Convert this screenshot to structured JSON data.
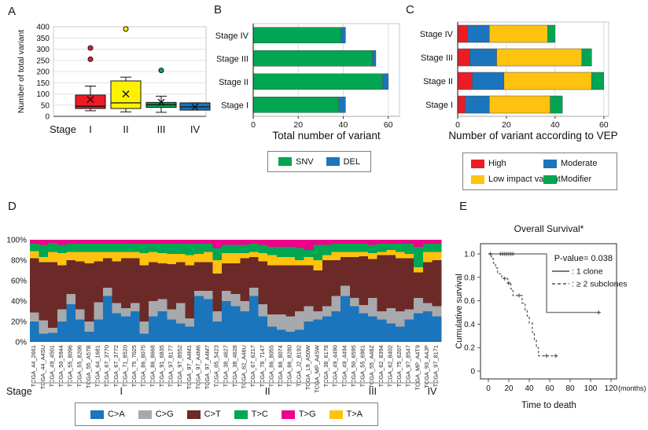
{
  "panels": {
    "a": "A",
    "b": "B",
    "c": "C",
    "d": "D",
    "e": "E"
  },
  "colors": {
    "red": "#EC1C24",
    "yellow": "#FFF200",
    "gold": "#FFC20E",
    "green": "#00A651",
    "blue": "#1B75BC",
    "gray": "#A7A9AC",
    "maroon": "#6B2A28",
    "magenta": "#EC008C"
  },
  "chart_data": [
    {
      "panel": "A",
      "type": "boxplot",
      "ylabel": "Number of total variant",
      "x_prefix": "Stage",
      "categories": [
        "I",
        "II",
        "III",
        "IV"
      ],
      "ylim": [
        0,
        400
      ],
      "yticks": [
        0,
        50,
        100,
        150,
        200,
        250,
        300,
        350,
        400
      ],
      "boxes": [
        {
          "category": "I",
          "color": "#EC1C24",
          "whisker_low": 25,
          "q1": 35,
          "median": 45,
          "q3": 95,
          "whisker_high": 135,
          "mean": 75,
          "outliers": [
            255,
            305
          ]
        },
        {
          "category": "II",
          "color": "#FFF200",
          "whisker_low": 20,
          "q1": 35,
          "median": 60,
          "q3": 158,
          "whisker_high": 175,
          "mean": 100,
          "outliers": [
            390
          ]
        },
        {
          "category": "III",
          "color": "#00A651",
          "whisker_low": 18,
          "q1": 40,
          "median": 52,
          "q3": 62,
          "whisker_high": 90,
          "mean": 63,
          "outliers": [
            205
          ]
        },
        {
          "category": "IV",
          "color": "#1B75BC",
          "whisker_low": 28,
          "q1": 28,
          "median": 42,
          "q3": 60,
          "whisker_high": 60,
          "mean": 42,
          "outliers": []
        }
      ]
    },
    {
      "panel": "B",
      "type": "bar",
      "orientation": "horizontal",
      "stacked": true,
      "xlabel": "Total number of variant",
      "categories": [
        "Stage IV",
        "Stage III",
        "Stage II",
        "Stage I"
      ],
      "series": [
        {
          "name": "SNV",
          "color": "#00A651",
          "values": [
            39,
            53,
            57.5,
            38
          ]
        },
        {
          "name": "DEL",
          "color": "#1B75BC",
          "values": [
            2,
            1.5,
            2.5,
            3
          ]
        }
      ],
      "xlim": [
        0,
        65
      ],
      "xticks": [
        0,
        20,
        40,
        60
      ],
      "legend": [
        {
          "name": "SNV",
          "color": "#00A651"
        },
        {
          "name": "DEL",
          "color": "#1B75BC"
        }
      ],
      "legend_position": "bottom"
    },
    {
      "panel": "C",
      "type": "bar",
      "orientation": "horizontal",
      "stacked": true,
      "xlabel": "Number of variant according to VEP",
      "categories": [
        "Stage IV",
        "Stage III",
        "Stage II",
        "Stage I"
      ],
      "series": [
        {
          "name": "High",
          "color": "#EC1C24",
          "values": [
            4,
            5,
            6,
            3
          ]
        },
        {
          "name": "Moderate",
          "color": "#1B75BC",
          "values": [
            9,
            11,
            13,
            10
          ]
        },
        {
          "name": "Low impact variant",
          "color": "#FFC20E",
          "values": [
            24,
            35,
            36,
            25
          ]
        },
        {
          "name": "Modifier",
          "color": "#00A651",
          "values": [
            3,
            4,
            5,
            5
          ]
        }
      ],
      "xlim": [
        0,
        62
      ],
      "xticks": [
        0,
        20,
        40,
        60
      ],
      "legend": [
        {
          "name": "High",
          "color": "#EC1C24"
        },
        {
          "name": "Moderate",
          "color": "#1B75BC"
        },
        {
          "name": "Low impact variant",
          "color": "#FFC20E"
        },
        {
          "name": "Modifier",
          "color": "#00A651"
        }
      ],
      "legend_position": "bottom"
    },
    {
      "panel": "D",
      "type": "bar",
      "subtype": "stacked-100-percent",
      "ytick_labels": [
        "0%",
        "20%",
        "40%",
        "60%",
        "80%",
        "100%"
      ],
      "stage_axis_label": "Stage",
      "stack_order_bottom_to_top": [
        "C>A",
        "C>G",
        "C>T",
        "T>A",
        "T>C",
        "T>G"
      ],
      "stack_colors": [
        "#1B75BC",
        "#A7A9AC",
        "#6B2A28",
        "#FFC20E",
        "#00A651",
        "#EC008C"
      ],
      "legend": [
        {
          "name": "C>A",
          "color": "#1B75BC"
        },
        {
          "name": "C>G",
          "color": "#A7A9AC"
        },
        {
          "name": "C>T",
          "color": "#6B2A28"
        },
        {
          "name": "T>C",
          "color": "#00A651"
        },
        {
          "name": "T>G",
          "color": "#EC008C"
        },
        {
          "name": "T>A",
          "color": "#FFC20E"
        }
      ],
      "groups": [
        {
          "stage": "I",
          "count": 20
        },
        {
          "stage": "II",
          "count": 12
        },
        {
          "stage": "III",
          "count": 11
        },
        {
          "stage": "IV",
          "count": 2
        }
      ],
      "samples": [
        {
          "id": "TCGA_44_2661",
          "values": [
            20,
            9,
            53,
            7,
            7,
            4
          ]
        },
        {
          "id": "TCGA_44_A4SU",
          "values": [
            8,
            13,
            57,
            5,
            12,
            5
          ]
        },
        {
          "id": "TCGA_49_4501",
          "values": [
            9,
            5,
            64,
            10,
            9,
            3
          ]
        },
        {
          "id": "TCGA_50_5944",
          "values": [
            20,
            12,
            43,
            12,
            8,
            5
          ]
        },
        {
          "id": "TCGA_55_8096",
          "values": [
            37,
            10,
            33,
            8,
            8,
            4
          ]
        },
        {
          "id": "TCGA_55_8206",
          "values": [
            22,
            10,
            47,
            9,
            8,
            4
          ]
        },
        {
          "id": "TCGA_55_A57B",
          "values": [
            10,
            10,
            57,
            11,
            8,
            4
          ]
        },
        {
          "id": "TCGA_64_1681",
          "values": [
            22,
            17,
            40,
            9,
            8,
            4
          ]
        },
        {
          "id": "TCGA_67_3770",
          "values": [
            45,
            8,
            29,
            6,
            8,
            4
          ]
        },
        {
          "id": "TCGA_67_3772",
          "values": [
            28,
            10,
            41,
            9,
            8,
            4
          ]
        },
        {
          "id": "TCGA_71_8520",
          "values": [
            25,
            8,
            49,
            6,
            8,
            4
          ]
        },
        {
          "id": "TCGA_75_7025",
          "values": [
            30,
            8,
            44,
            6,
            8,
            4
          ]
        },
        {
          "id": "TCGA_86_8075",
          "values": [
            8,
            12,
            55,
            12,
            9,
            4
          ]
        },
        {
          "id": "TCGA_86_8668",
          "values": [
            25,
            15,
            38,
            10,
            8,
            4
          ]
        },
        {
          "id": "TCGA_91_6835",
          "values": [
            30,
            12,
            35,
            10,
            9,
            4
          ]
        },
        {
          "id": "TCGA_97_8177",
          "values": [
            22,
            10,
            44,
            10,
            10,
            4
          ]
        },
        {
          "id": "TCGA_97_8552",
          "values": [
            18,
            20,
            40,
            8,
            10,
            4
          ]
        },
        {
          "id": "TCGA_97_A4M1",
          "values": [
            15,
            8,
            52,
            10,
            11,
            4
          ]
        },
        {
          "id": "TCGA_97_A4M6",
          "values": [
            45,
            5,
            28,
            8,
            10,
            4
          ]
        },
        {
          "id": "TCGA_97_A4M7",
          "values": [
            42,
            8,
            28,
            10,
            8,
            4
          ]
        },
        {
          "id": "TCGA_05_5423",
          "values": [
            20,
            10,
            37,
            13,
            12,
            8
          ]
        },
        {
          "id": "TCGA_38_4627",
          "values": [
            40,
            10,
            27,
            10,
            8,
            5
          ]
        },
        {
          "id": "TCGA_38_4628",
          "values": [
            35,
            12,
            30,
            10,
            8,
            5
          ]
        },
        {
          "id": "TCGA_62_A46U",
          "values": [
            30,
            10,
            42,
            5,
            8,
            5
          ]
        },
        {
          "id": "TCGA_67_6217",
          "values": [
            45,
            8,
            30,
            5,
            8,
            4
          ]
        },
        {
          "id": "TCGA_78_7147",
          "values": [
            25,
            12,
            42,
            8,
            8,
            5
          ]
        },
        {
          "id": "TCGA_86_8055",
          "values": [
            15,
            12,
            48,
            10,
            8,
            7
          ]
        },
        {
          "id": "TCGA_86_8074",
          "values": [
            12,
            15,
            48,
            8,
            10,
            7
          ]
        },
        {
          "id": "TCGA_86_8280",
          "values": [
            10,
            15,
            50,
            8,
            10,
            7
          ]
        },
        {
          "id": "TCGA_J2_8192",
          "values": [
            12,
            18,
            45,
            5,
            12,
            8
          ]
        },
        {
          "id": "TCGA_L9_A50W",
          "values": [
            20,
            15,
            40,
            8,
            7,
            10
          ]
        },
        {
          "id": "TCGA_MP_A4SW",
          "values": [
            22,
            8,
            40,
            10,
            15,
            5
          ]
        },
        {
          "id": "TCGA_38_6178",
          "values": [
            25,
            10,
            45,
            5,
            10,
            5
          ]
        },
        {
          "id": "TCGA_49_4490",
          "values": [
            30,
            15,
            35,
            8,
            8,
            4
          ]
        },
        {
          "id": "TCGA_49_4494",
          "values": [
            45,
            10,
            28,
            5,
            8,
            4
          ]
        },
        {
          "id": "TCGA_50_6595",
          "values": [
            35,
            8,
            40,
            5,
            8,
            4
          ]
        },
        {
          "id": "TCGA_55_6981",
          "values": [
            28,
            8,
            48,
            4,
            8,
            4
          ]
        },
        {
          "id": "TCGA_55_A48Z",
          "values": [
            25,
            18,
            38,
            6,
            8,
            5
          ]
        },
        {
          "id": "TCGA_62_8394",
          "values": [
            22,
            8,
            55,
            3,
            8,
            4
          ]
        },
        {
          "id": "TCGA_62_8402",
          "values": [
            18,
            15,
            52,
            5,
            6,
            4
          ]
        },
        {
          "id": "TCGA_75_6207",
          "values": [
            15,
            15,
            52,
            6,
            8,
            4
          ]
        },
        {
          "id": "TCGA_97_8547",
          "values": [
            22,
            10,
            50,
            4,
            10,
            4
          ]
        },
        {
          "id": "TCGA_MP_A4T9",
          "values": [
            28,
            15,
            25,
            5,
            20,
            7
          ]
        },
        {
          "id": "TCGA_93_A4JP",
          "values": [
            30,
            8,
            40,
            10,
            8,
            4
          ]
        },
        {
          "id": "TCGA_97_8171",
          "values": [
            25,
            10,
            45,
            8,
            8,
            4
          ]
        }
      ]
    },
    {
      "panel": "E",
      "type": "line",
      "subtype": "kaplan-meier",
      "title": "Overall Survival*",
      "xlabel": "Time to death",
      "ylabel": "Cumulative survival",
      "x_unit": "(months)",
      "pvalue_text": "P-value= 0.038",
      "xlim": [
        0,
        125
      ],
      "xticks": [
        0,
        20,
        40,
        60,
        80,
        100,
        120
      ],
      "yticks": [
        0,
        0.2,
        0.4,
        0.6,
        0.8,
        1.0
      ],
      "ytick_labels": [
        "0",
        "0.2",
        "0.4",
        "0.6",
        "0.8",
        "1.0"
      ],
      "legend": [
        {
          "label": ": 1 clone",
          "style": "solid"
        },
        {
          "label": ": ≥ 2 subclones",
          "style": "dashed"
        }
      ],
      "series": [
        {
          "name": "1 clone",
          "style": "solid",
          "color": "#7f7f7f",
          "steps": [
            [
              0,
              1.0
            ],
            [
              57,
              1.0
            ],
            [
              57,
              0.5
            ],
            [
              108,
              0.5
            ]
          ],
          "censors": [
            [
              2,
              1.0
            ],
            [
              12,
              1.0
            ],
            [
              14,
              1.0
            ],
            [
              16,
              1.0
            ],
            [
              18,
              1.0
            ],
            [
              20,
              1.0
            ],
            [
              22,
              1.0
            ],
            [
              24,
              1.0
            ],
            [
              108,
              0.5
            ]
          ]
        },
        {
          "name": "≥ 2 subclones",
          "style": "dashed",
          "color": "#4d4d4d",
          "steps": [
            [
              0,
              1.0
            ],
            [
              3,
              1.0
            ],
            [
              3,
              0.96
            ],
            [
              5,
              0.96
            ],
            [
              5,
              0.92
            ],
            [
              7,
              0.92
            ],
            [
              7,
              0.88
            ],
            [
              9,
              0.88
            ],
            [
              9,
              0.83
            ],
            [
              13,
              0.83
            ],
            [
              13,
              0.79
            ],
            [
              19,
              0.79
            ],
            [
              19,
              0.75
            ],
            [
              22,
              0.75
            ],
            [
              22,
              0.7
            ],
            [
              24,
              0.7
            ],
            [
              24,
              0.645
            ],
            [
              33,
              0.645
            ],
            [
              33,
              0.58
            ],
            [
              36,
              0.58
            ],
            [
              36,
              0.52
            ],
            [
              38,
              0.52
            ],
            [
              38,
              0.47
            ],
            [
              40,
              0.47
            ],
            [
              40,
              0.41
            ],
            [
              43,
              0.41
            ],
            [
              43,
              0.33
            ],
            [
              45,
              0.33
            ],
            [
              45,
              0.27
            ],
            [
              47,
              0.27
            ],
            [
              47,
              0.2
            ],
            [
              49,
              0.2
            ],
            [
              49,
              0.13
            ],
            [
              68,
              0.13
            ]
          ],
          "censors": [
            [
              16,
              0.79
            ],
            [
              20,
              0.75
            ],
            [
              30,
              0.645
            ],
            [
              57,
              0.13
            ],
            [
              66,
              0.13
            ]
          ]
        }
      ]
    }
  ]
}
